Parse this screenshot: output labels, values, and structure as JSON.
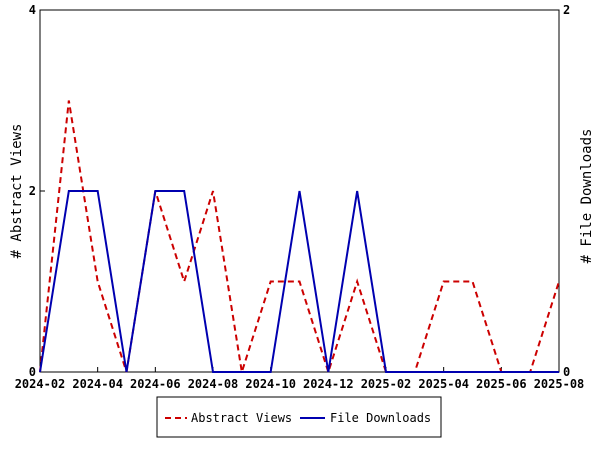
{
  "chart_data": {
    "type": "line",
    "x": [
      "2024-02",
      "2024-03",
      "2024-04",
      "2024-05",
      "2024-06",
      "2024-07",
      "2024-08",
      "2024-09",
      "2024-10",
      "2024-11",
      "2024-12",
      "2025-01",
      "2025-02",
      "2025-03",
      "2025-04",
      "2025-05",
      "2025-06",
      "2025-07",
      "2025-08"
    ],
    "x_ticks": [
      "2024-02",
      "2024-04",
      "2024-06",
      "2024-08",
      "2024-10",
      "2024-12",
      "2025-02",
      "2025-04",
      "2025-06",
      "2025-08"
    ],
    "series": [
      {
        "name": "Abstract Views",
        "axis": "left",
        "color": "#cc0000",
        "dash": "dashed",
        "values": [
          0,
          3,
          1,
          0,
          2,
          1,
          2,
          0,
          1,
          1,
          0,
          1,
          0,
          0,
          1,
          1,
          0,
          0,
          1
        ]
      },
      {
        "name": "File Downloads",
        "axis": "right",
        "color": "#0000b0",
        "dash": "solid",
        "values": [
          0,
          1,
          1,
          0,
          1,
          1,
          0,
          0,
          0,
          1,
          0,
          1,
          0,
          0,
          0,
          0,
          0,
          0,
          0
        ]
      }
    ],
    "ylabel": "# Abstract Views",
    "ylim": [
      0,
      4
    ],
    "yticks": [
      "0",
      "2",
      "4"
    ],
    "y2label": "# File Downloads",
    "y2lim": [
      0,
      2
    ],
    "y2ticks": [
      "0",
      "2"
    ],
    "grid": false,
    "legend_position": "bottom-center"
  }
}
